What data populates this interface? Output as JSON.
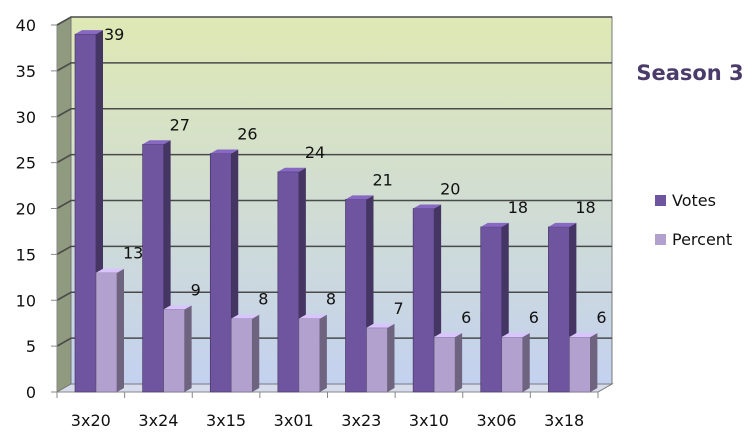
{
  "chart_data": {
    "type": "bar",
    "title": "Season 3",
    "categories": [
      "3x20",
      "3x24",
      "3x15",
      "3x01",
      "3x23",
      "3x10",
      "3x06",
      "3x18"
    ],
    "series": [
      {
        "name": "Votes",
        "values": [
          39,
          27,
          26,
          24,
          21,
          20,
          18,
          18
        ]
      },
      {
        "name": "Percent",
        "values": [
          13,
          9,
          8,
          8,
          7,
          6,
          6,
          6
        ]
      }
    ],
    "ylim": [
      0,
      40
    ],
    "yticks": [
      "0",
      "5",
      "10",
      "15",
      "20",
      "25",
      "30",
      "35",
      "40"
    ],
    "xlabel": "",
    "ylabel": "",
    "grid": true,
    "legend_position": "right",
    "colors": {
      "votes": "#6f55a0",
      "percent": "#b2a1cf",
      "wall_top": "#dfe9b4",
      "wall_bottom": "#c3d1f0",
      "gridline": "#4a4a4a"
    }
  }
}
